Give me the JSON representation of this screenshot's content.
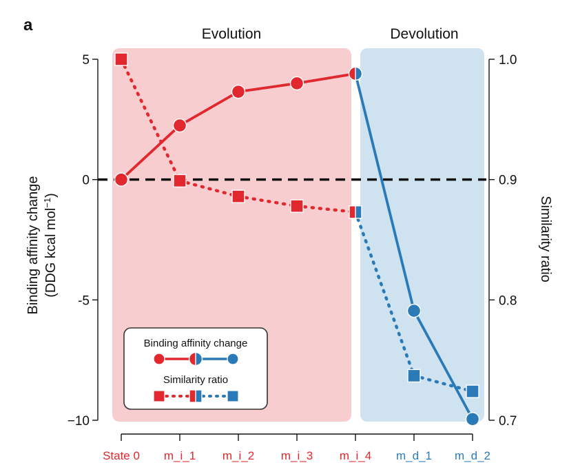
{
  "panel_label": "a",
  "colors": {
    "evolution": "#e0282e",
    "devolution": "#2a7ab8",
    "evolution_bg": "#f8cdd0",
    "devolution_bg": "#cfe2ef",
    "zero_line": "#111111"
  },
  "chart_data": {
    "type": "line",
    "regions": [
      {
        "label": "Evolution",
        "from": "State 0",
        "to": "m_i_4"
      },
      {
        "label": "Devolution",
        "from": "m_i_4",
        "to": "m_d_2"
      }
    ],
    "categories": [
      "State 0",
      "m_i_1",
      "m_i_2",
      "m_i_3",
      "m_i_4",
      "m_d_1",
      "m_d_2"
    ],
    "category_groups": [
      "evolution",
      "evolution",
      "evolution",
      "evolution",
      "evolution",
      "devolution",
      "devolution"
    ],
    "y_left": {
      "label_line1": "Binding affinity change",
      "label_line2": "(DDG kcal mol",
      "label_sup": "−1",
      "label_end": ")",
      "ylim": [
        -10,
        5
      ],
      "ticks": [
        5,
        0,
        -5,
        -10
      ],
      "tick_labels": [
        "5",
        "0",
        "-5",
        "−10"
      ]
    },
    "y_right": {
      "label": "Similarity ratio",
      "ylim": [
        0.7,
        1.0
      ],
      "ticks": [
        1.0,
        0.9,
        0.8,
        0.7
      ],
      "tick_labels": [
        "1.0",
        "0.9",
        "0.8",
        "0.7"
      ]
    },
    "reference_line": {
      "axis": "left",
      "value": 0,
      "style": "dashed"
    },
    "series": [
      {
        "name": "Binding affinity change",
        "axis": "left",
        "style": "solid",
        "marker": "circle",
        "values": [
          0.0,
          2.25,
          3.65,
          4.0,
          4.4,
          -5.45,
          -9.95
        ]
      },
      {
        "name": "Similarity ratio",
        "axis": "right",
        "style": "dotted",
        "marker": "square",
        "values": [
          1.0,
          0.899,
          0.886,
          0.878,
          0.873,
          0.737,
          0.724
        ]
      }
    ],
    "legend": {
      "placement": "bottom-left",
      "entries": [
        "Binding affinity change",
        "Similarity ratio"
      ]
    }
  }
}
